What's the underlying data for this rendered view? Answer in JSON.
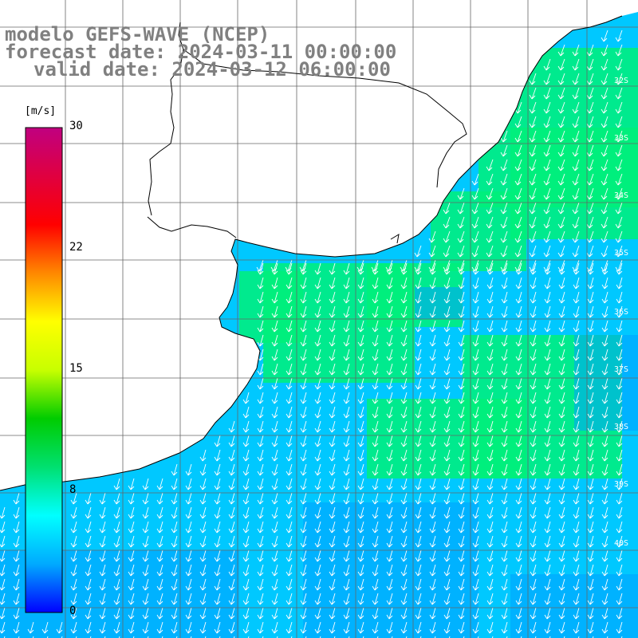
{
  "title": {
    "line1": "modelo GEFS-WAVE (NCEP)",
    "line2": "forecast date: 2024-03-11 00:00:00",
    "line3": "valid date: 2024-03-12 06:00:00"
  },
  "colorbar": {
    "unit": "[m/s]",
    "ticks": [
      "30",
      "22",
      "15",
      "8",
      "0"
    ],
    "min": 0,
    "max": 30,
    "gradient": [
      "#0000ff",
      "#00aaff",
      "#00ffff",
      "#00e070",
      "#00cc00",
      "#c8ff00",
      "#ffff00",
      "#ff8800",
      "#ff0000",
      "#e00040",
      "#c00080"
    ]
  },
  "latitude_labels": [
    "32S",
    "33S",
    "34S",
    "35S",
    "36S",
    "37S",
    "38S",
    "39S",
    "40S"
  ],
  "field": {
    "base_wind_color": "#00c8ff",
    "strong_wind_color": "#00f07a",
    "weak_wind_color": "#00a0ff",
    "arrow_color": "#ffffff",
    "arrow_direction": "south-southwest"
  },
  "map": {
    "land_color": "#ffffff",
    "coast_color": "#000000",
    "grid_color": "#666666"
  }
}
